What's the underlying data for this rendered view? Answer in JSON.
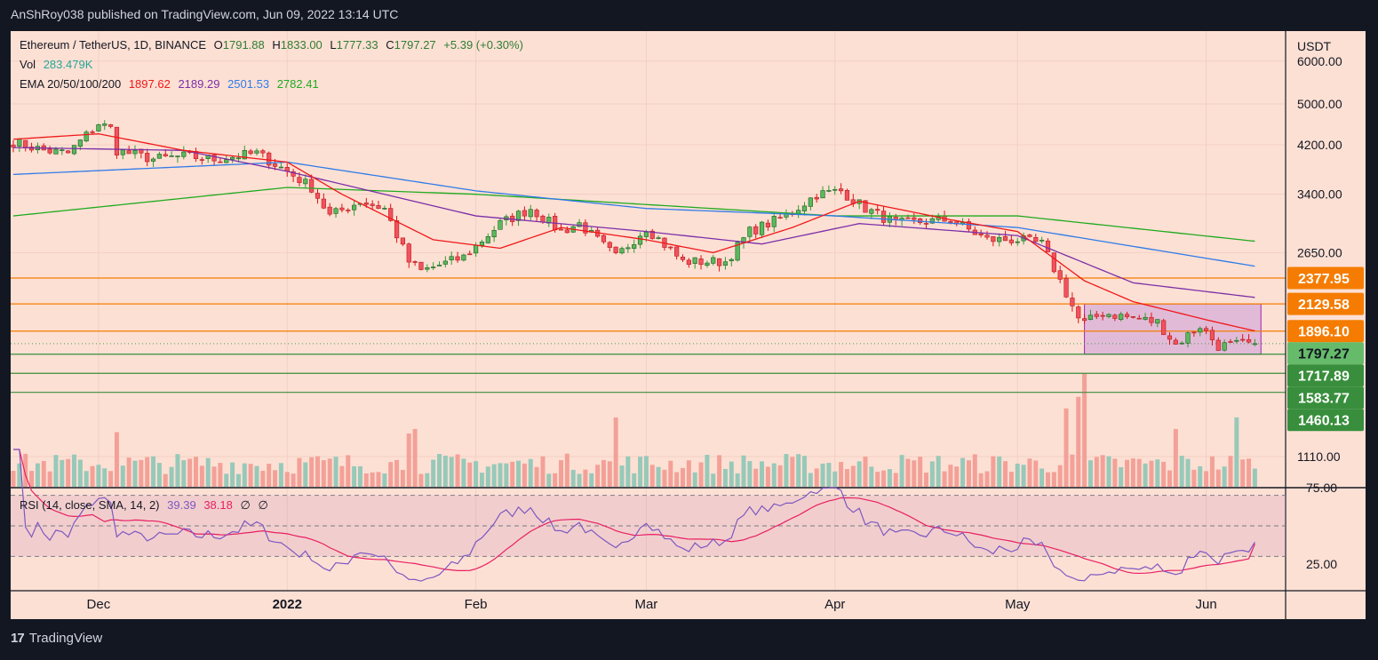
{
  "header": {
    "published": "AnShRoy038 published on TradingView.com, Jun 09, 2022 13:14 UTC"
  },
  "legend": {
    "symbol": "Ethereum / TetherUS, 1D, BINANCE",
    "o_label": "O",
    "open": "1791.88",
    "h_label": "H",
    "high": "1833.00",
    "l_label": "L",
    "low": "1777.33",
    "c_label": "C",
    "close": "1797.27",
    "change": "+5.39 (+0.30%)",
    "vol_label": "Vol",
    "vol": "283.479K",
    "ema_label": "EMA 20/50/100/200",
    "ema20": "1897.62",
    "ema50": "2189.29",
    "ema100": "2501.53",
    "ema200": "2782.41",
    "rsi_label": "RSI (14, close, SMA, 14, 2)",
    "rsi": "39.39",
    "rsi_sma": "38.18",
    "rsi_extra1": "∅",
    "rsi_extra2": "∅"
  },
  "footer": {
    "brand": "TradingView",
    "logo_mark": "17"
  },
  "colors": {
    "background": "#fde0d4",
    "up": "#5cb85c",
    "down": "#f2525e",
    "ema20": "#f01818",
    "ema50": "#7b2fa8",
    "ema100": "#2f7be8",
    "ema200": "#1faa1f",
    "orange": "#f57c00",
    "green_level": "#388e3c",
    "current": "#66bb6a",
    "rsi": "#7e57c2",
    "rsi_sma": "#e91e63"
  },
  "chart_data": {
    "type": "candlestick",
    "title": "Ethereum / TetherUS, 1D, BINANCE",
    "scale": "log",
    "currency": "USDT",
    "date_range": [
      "2021-11-17",
      "2022-06-09"
    ],
    "price_ticks": [
      "6000.00",
      "5000.00",
      "4200.00",
      "3400.00",
      "2650.00",
      "1110.00"
    ],
    "time_ticks": [
      {
        "label": "Dec",
        "date": "2021-12-01"
      },
      {
        "label": "2022",
        "date": "2022-01-01",
        "bold": true
      },
      {
        "label": "Feb",
        "date": "2022-02-01"
      },
      {
        "label": "Mar",
        "date": "2022-03-01"
      },
      {
        "label": "Apr",
        "date": "2022-04-01"
      },
      {
        "label": "May",
        "date": "2022-05-01"
      },
      {
        "label": "Jun",
        "date": "2022-06-01"
      }
    ],
    "close_anchors": [
      [
        "2021-11-17",
        4250
      ],
      [
        "2021-11-22",
        4100
      ],
      [
        "2021-11-26",
        4050
      ],
      [
        "2021-12-01",
        4600
      ],
      [
        "2021-12-03",
        4500
      ],
      [
        "2021-12-04",
        4100
      ],
      [
        "2021-12-10",
        3950
      ],
      [
        "2021-12-15",
        4000
      ],
      [
        "2021-12-20",
        3950
      ],
      [
        "2021-12-27",
        4050
      ],
      [
        "2022-01-01",
        3750
      ],
      [
        "2022-01-05",
        3500
      ],
      [
        "2022-01-08",
        3100
      ],
      [
        "2022-01-13",
        3300
      ],
      [
        "2022-01-17",
        3200
      ],
      [
        "2022-01-21",
        2550
      ],
      [
        "2022-01-23",
        2450
      ],
      [
        "2022-01-30",
        2600
      ],
      [
        "2022-02-05",
        3000
      ],
      [
        "2022-02-10",
        3200
      ],
      [
        "2022-02-15",
        2900
      ],
      [
        "2022-02-18",
        3000
      ],
      [
        "2022-02-24",
        2600
      ],
      [
        "2022-03-01",
        2950
      ],
      [
        "2022-03-07",
        2550
      ],
      [
        "2022-03-14",
        2550
      ],
      [
        "2022-03-18",
        2900
      ],
      [
        "2022-03-24",
        3100
      ],
      [
        "2022-03-29",
        3400
      ],
      [
        "2022-04-02",
        3450
      ],
      [
        "2022-04-06",
        3200
      ],
      [
        "2022-04-11",
        3000
      ],
      [
        "2022-04-20",
        3050
      ],
      [
        "2022-04-26",
        2800
      ],
      [
        "2022-05-01",
        2800
      ],
      [
        "2022-05-05",
        2750
      ],
      [
        "2022-05-09",
        2230
      ],
      [
        "2022-05-11",
        2000
      ],
      [
        "2022-05-12",
        1960
      ],
      [
        "2022-05-15",
        2050
      ],
      [
        "2022-05-24",
        1970
      ],
      [
        "2022-05-27",
        1790
      ],
      [
        "2022-05-31",
        1940
      ],
      [
        "2022-06-03",
        1780
      ],
      [
        "2022-06-09",
        1797.27
      ]
    ],
    "ema_anchors": {
      "ema20": [
        [
          "2021-11-17",
          4300
        ],
        [
          "2021-12-01",
          4400
        ],
        [
          "2021-12-15",
          4100
        ],
        [
          "2022-01-01",
          3900
        ],
        [
          "2022-01-10",
          3400
        ],
        [
          "2022-01-25",
          2800
        ],
        [
          "2022-02-05",
          2700
        ],
        [
          "2022-02-15",
          2950
        ],
        [
          "2022-03-01",
          2800
        ],
        [
          "2022-03-12",
          2650
        ],
        [
          "2022-03-25",
          2950
        ],
        [
          "2022-04-05",
          3300
        ],
        [
          "2022-04-20",
          3050
        ],
        [
          "2022-05-01",
          2900
        ],
        [
          "2022-05-12",
          2350
        ],
        [
          "2022-05-20",
          2150
        ],
        [
          "2022-06-01",
          1990
        ],
        [
          "2022-06-09",
          1897.62
        ]
      ],
      "ema50": [
        [
          "2021-11-17",
          4150
        ],
        [
          "2021-12-15",
          4100
        ],
        [
          "2022-01-01",
          3750
        ],
        [
          "2022-02-01",
          3100
        ],
        [
          "2022-03-01",
          2900
        ],
        [
          "2022-03-20",
          2750
        ],
        [
          "2022-04-05",
          3000
        ],
        [
          "2022-05-01",
          2850
        ],
        [
          "2022-05-20",
          2330
        ],
        [
          "2022-06-09",
          2189.29
        ]
      ],
      "ema100": [
        [
          "2021-11-17",
          3700
        ],
        [
          "2022-01-01",
          3900
        ],
        [
          "2022-02-01",
          3450
        ],
        [
          "2022-03-01",
          3200
        ],
        [
          "2022-04-01",
          3100
        ],
        [
          "2022-05-01",
          2950
        ],
        [
          "2022-06-09",
          2501.53
        ]
      ],
      "ema200": [
        [
          "2021-11-17",
          3100
        ],
        [
          "2022-01-01",
          3500
        ],
        [
          "2022-02-01",
          3400
        ],
        [
          "2022-04-01",
          3100
        ],
        [
          "2022-05-01",
          3100
        ],
        [
          "2022-06-09",
          2782.41
        ]
      ]
    },
    "volume_baseline_k": 360,
    "volume_spikes_k": [
      [
        "2021-12-04",
        850
      ],
      [
        "2022-01-21",
        830
      ],
      [
        "2022-01-22",
        900
      ],
      [
        "2022-02-24",
        1080
      ],
      [
        "2022-05-09",
        1220
      ],
      [
        "2022-05-11",
        1400
      ],
      [
        "2022-05-12",
        1770
      ],
      [
        "2022-05-27",
        900
      ],
      [
        "2022-06-06",
        1080
      ],
      [
        "2022-06-09",
        283.479
      ]
    ],
    "levels": [
      {
        "price": 2377.95,
        "label": "2377.95",
        "kind": "orange"
      },
      {
        "price": 2129.58,
        "label": "2129.58",
        "kind": "orange"
      },
      {
        "price": 1896.1,
        "label": "1896.10",
        "kind": "orange"
      },
      {
        "price": 1797.27,
        "label": "1797.27",
        "kind": "current"
      },
      {
        "price": 1717.89,
        "label": "1717.89",
        "kind": "green"
      },
      {
        "price": 1583.77,
        "label": "1583.77",
        "kind": "green"
      },
      {
        "price": 1460.13,
        "label": "1460.13",
        "kind": "green"
      }
    ],
    "range_box": {
      "from": "2022-05-12",
      "to": "2022-06-10",
      "low": 1717.89,
      "high": 2129.58
    },
    "rsi": {
      "period": 14,
      "sma": 14,
      "upper": 70,
      "middle": 50,
      "lower": 30,
      "ticks": [
        "75.00",
        "25.00"
      ],
      "last": 39.39,
      "last_sma": 38.18
    }
  }
}
